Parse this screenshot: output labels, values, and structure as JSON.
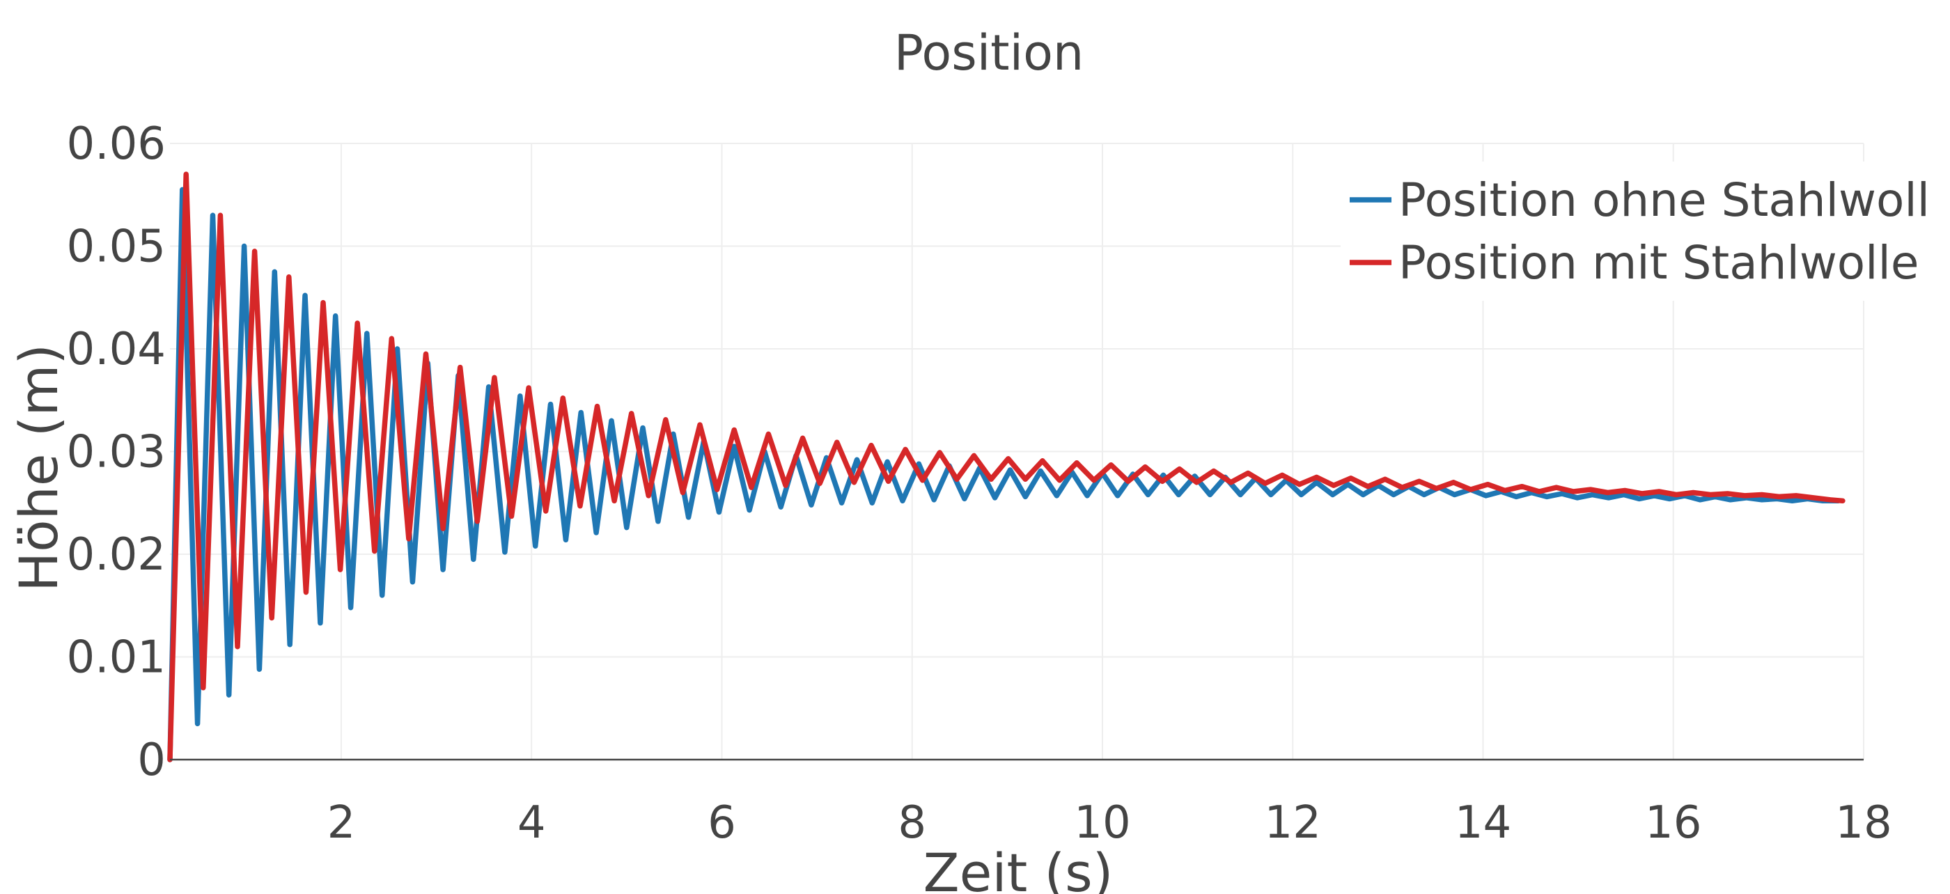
{
  "chart_data": {
    "type": "line",
    "title": "Position",
    "xlabel": "Zeit (s)",
    "ylabel": "Höhe (m)",
    "xlim": [
      0.2,
      18
    ],
    "ylim": [
      0,
      0.06
    ],
    "x_ticks": [
      2,
      4,
      6,
      8,
      10,
      12,
      14,
      16,
      18
    ],
    "x_tick_labels": [
      "2",
      "4",
      "6",
      "8",
      "10",
      "12",
      "14",
      "16",
      "18"
    ],
    "y_ticks": [
      0,
      0.01,
      0.02,
      0.03,
      0.04,
      0.05,
      0.06
    ],
    "y_tick_labels": [
      "0",
      "0.01",
      "0.02",
      "0.03",
      "0.04",
      "0.05",
      "0.06"
    ],
    "grid": true,
    "legend_position": "top-right",
    "series": [
      {
        "name": "Position ohne Stahlwoll",
        "color": "#1f77b4",
        "x": [
          0.2,
          0.33,
          0.49,
          0.65,
          0.82,
          0.98,
          1.14,
          1.3,
          1.46,
          1.62,
          1.78,
          1.94,
          2.1,
          2.27,
          2.43,
          2.59,
          2.75,
          2.91,
          3.07,
          3.23,
          3.39,
          3.55,
          3.72,
          3.88,
          4.04,
          4.2,
          4.36,
          4.52,
          4.68,
          4.84,
          5.0,
          5.17,
          5.33,
          5.49,
          5.65,
          5.81,
          5.97,
          6.13,
          6.29,
          6.45,
          6.62,
          6.78,
          6.94,
          7.1,
          7.26,
          7.42,
          7.58,
          7.74,
          7.9,
          8.07,
          8.23,
          8.39,
          8.55,
          8.71,
          8.87,
          9.03,
          9.19,
          9.35,
          9.52,
          9.68,
          9.84,
          10.0,
          10.16,
          10.32,
          10.48,
          10.64,
          10.8,
          10.97,
          11.13,
          11.29,
          11.45,
          11.61,
          11.77,
          11.93,
          12.09,
          12.25,
          12.42,
          12.58,
          12.74,
          12.9,
          13.06,
          13.22,
          13.38,
          13.54,
          13.7,
          13.87,
          14.03,
          14.19,
          14.35,
          14.51,
          14.67,
          14.83,
          14.99,
          15.15,
          15.32,
          15.48,
          15.64,
          15.8,
          15.96,
          16.12,
          16.28,
          16.44,
          16.6,
          16.77,
          16.93,
          17.09,
          17.25,
          17.41,
          17.57,
          17.73
        ],
        "y": [
          0.0,
          0.0555,
          0.0035,
          0.053,
          0.0063,
          0.05,
          0.0088,
          0.0475,
          0.0112,
          0.0452,
          0.0133,
          0.0432,
          0.0148,
          0.0415,
          0.016,
          0.04,
          0.0173,
          0.0386,
          0.0185,
          0.0374,
          0.0195,
          0.0363,
          0.0202,
          0.0354,
          0.0208,
          0.0346,
          0.0214,
          0.0338,
          0.0221,
          0.033,
          0.0226,
          0.0323,
          0.0232,
          0.0317,
          0.0236,
          0.031,
          0.0241,
          0.0305,
          0.0243,
          0.03,
          0.0246,
          0.0296,
          0.0248,
          0.0294,
          0.025,
          0.0292,
          0.025,
          0.029,
          0.0252,
          0.0288,
          0.0253,
          0.0286,
          0.0254,
          0.0284,
          0.0255,
          0.0282,
          0.0256,
          0.0281,
          0.0257,
          0.028,
          0.0257,
          0.0279,
          0.0257,
          0.0278,
          0.0258,
          0.0277,
          0.0258,
          0.0276,
          0.0258,
          0.0275,
          0.0258,
          0.0274,
          0.0258,
          0.0272,
          0.0258,
          0.027,
          0.0258,
          0.0268,
          0.0258,
          0.0267,
          0.0258,
          0.0266,
          0.0258,
          0.0265,
          0.0258,
          0.0263,
          0.0257,
          0.0261,
          0.0256,
          0.026,
          0.0256,
          0.0259,
          0.0255,
          0.0258,
          0.0255,
          0.0258,
          0.0254,
          0.0257,
          0.0254,
          0.0257,
          0.0253,
          0.0256,
          0.0253,
          0.0255,
          0.0253,
          0.0254,
          0.0252,
          0.0254,
          0.0252,
          0.0252
        ]
      },
      {
        "name": "Position mit Stahlwolle",
        "color": "#d62728",
        "x": [
          0.2,
          0.37,
          0.55,
          0.73,
          0.91,
          1.09,
          1.27,
          1.45,
          1.63,
          1.81,
          1.99,
          2.17,
          2.35,
          2.53,
          2.71,
          2.89,
          3.07,
          3.25,
          3.43,
          3.61,
          3.79,
          3.97,
          4.15,
          4.33,
          4.51,
          4.69,
          4.87,
          5.05,
          5.23,
          5.41,
          5.59,
          5.77,
          5.95,
          6.13,
          6.31,
          6.49,
          6.67,
          6.85,
          7.03,
          7.21,
          7.39,
          7.57,
          7.75,
          7.93,
          8.11,
          8.29,
          8.47,
          8.65,
          8.83,
          9.01,
          9.19,
          9.37,
          9.55,
          9.73,
          9.91,
          10.09,
          10.27,
          10.45,
          10.63,
          10.81,
          10.99,
          11.17,
          11.35,
          11.53,
          11.71,
          11.89,
          12.07,
          12.25,
          12.43,
          12.61,
          12.79,
          12.97,
          13.15,
          13.33,
          13.51,
          13.69,
          13.87,
          14.05,
          14.23,
          14.41,
          14.59,
          14.77,
          14.95,
          15.13,
          15.31,
          15.49,
          15.67,
          15.85,
          16.03,
          16.21,
          16.39,
          16.57,
          16.75,
          16.93,
          17.11,
          17.29,
          17.47,
          17.65,
          17.78
        ],
        "y": [
          0.0,
          0.057,
          0.007,
          0.053,
          0.011,
          0.0495,
          0.0138,
          0.047,
          0.0163,
          0.0445,
          0.0185,
          0.0425,
          0.0203,
          0.041,
          0.0215,
          0.0395,
          0.0225,
          0.0382,
          0.0232,
          0.0372,
          0.0237,
          0.0362,
          0.0242,
          0.0352,
          0.0247,
          0.0344,
          0.0252,
          0.0337,
          0.0257,
          0.0331,
          0.026,
          0.0326,
          0.0263,
          0.0321,
          0.0265,
          0.0317,
          0.0267,
          0.0313,
          0.0269,
          0.0309,
          0.027,
          0.0306,
          0.0271,
          0.0302,
          0.0272,
          0.0299,
          0.0273,
          0.0296,
          0.0273,
          0.0293,
          0.0273,
          0.0291,
          0.0272,
          0.0289,
          0.0272,
          0.0287,
          0.0271,
          0.0285,
          0.0271,
          0.0283,
          0.027,
          0.0281,
          0.027,
          0.0279,
          0.0269,
          0.0277,
          0.0268,
          0.0275,
          0.0267,
          0.0274,
          0.0266,
          0.0273,
          0.0265,
          0.0271,
          0.0264,
          0.027,
          0.0263,
          0.0268,
          0.0262,
          0.0266,
          0.0261,
          0.0265,
          0.0261,
          0.0263,
          0.026,
          0.0262,
          0.0259,
          0.0261,
          0.0258,
          0.026,
          0.0258,
          0.0259,
          0.0257,
          0.0258,
          0.0256,
          0.0257,
          0.0255,
          0.0253,
          0.0252
        ]
      }
    ]
  }
}
